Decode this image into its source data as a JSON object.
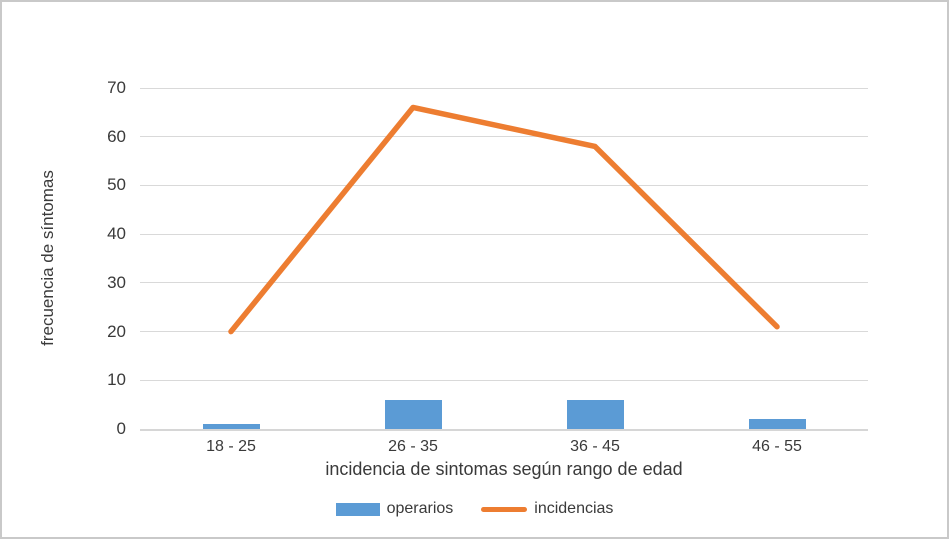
{
  "chart_data": {
    "type": "combo",
    "categories": [
      "18 - 25",
      "26 - 35",
      "36 - 45",
      "46 - 55"
    ],
    "series": [
      {
        "name": "operarios",
        "type": "bar",
        "color": "#5b9bd5",
        "values": [
          1,
          6,
          6,
          2
        ]
      },
      {
        "name": "incidencias",
        "type": "line",
        "color": "#ed7d31",
        "values": [
          20,
          66,
          58,
          21
        ]
      }
    ],
    "title": "",
    "xlabel": "incidencia de sintomas según rango de edad",
    "ylabel": "frecuencia de síntomas",
    "ylim": [
      0,
      70
    ],
    "yticks": [
      0,
      10,
      20,
      30,
      40,
      50,
      60,
      70
    ],
    "grid": true,
    "legend_position": "bottom",
    "colors": {
      "gridline": "#d9d9d9",
      "axis": "#d6d6d6",
      "text": "#3a3a3a",
      "background": "#ffffff",
      "frame_border": "#c9c9c9"
    }
  }
}
